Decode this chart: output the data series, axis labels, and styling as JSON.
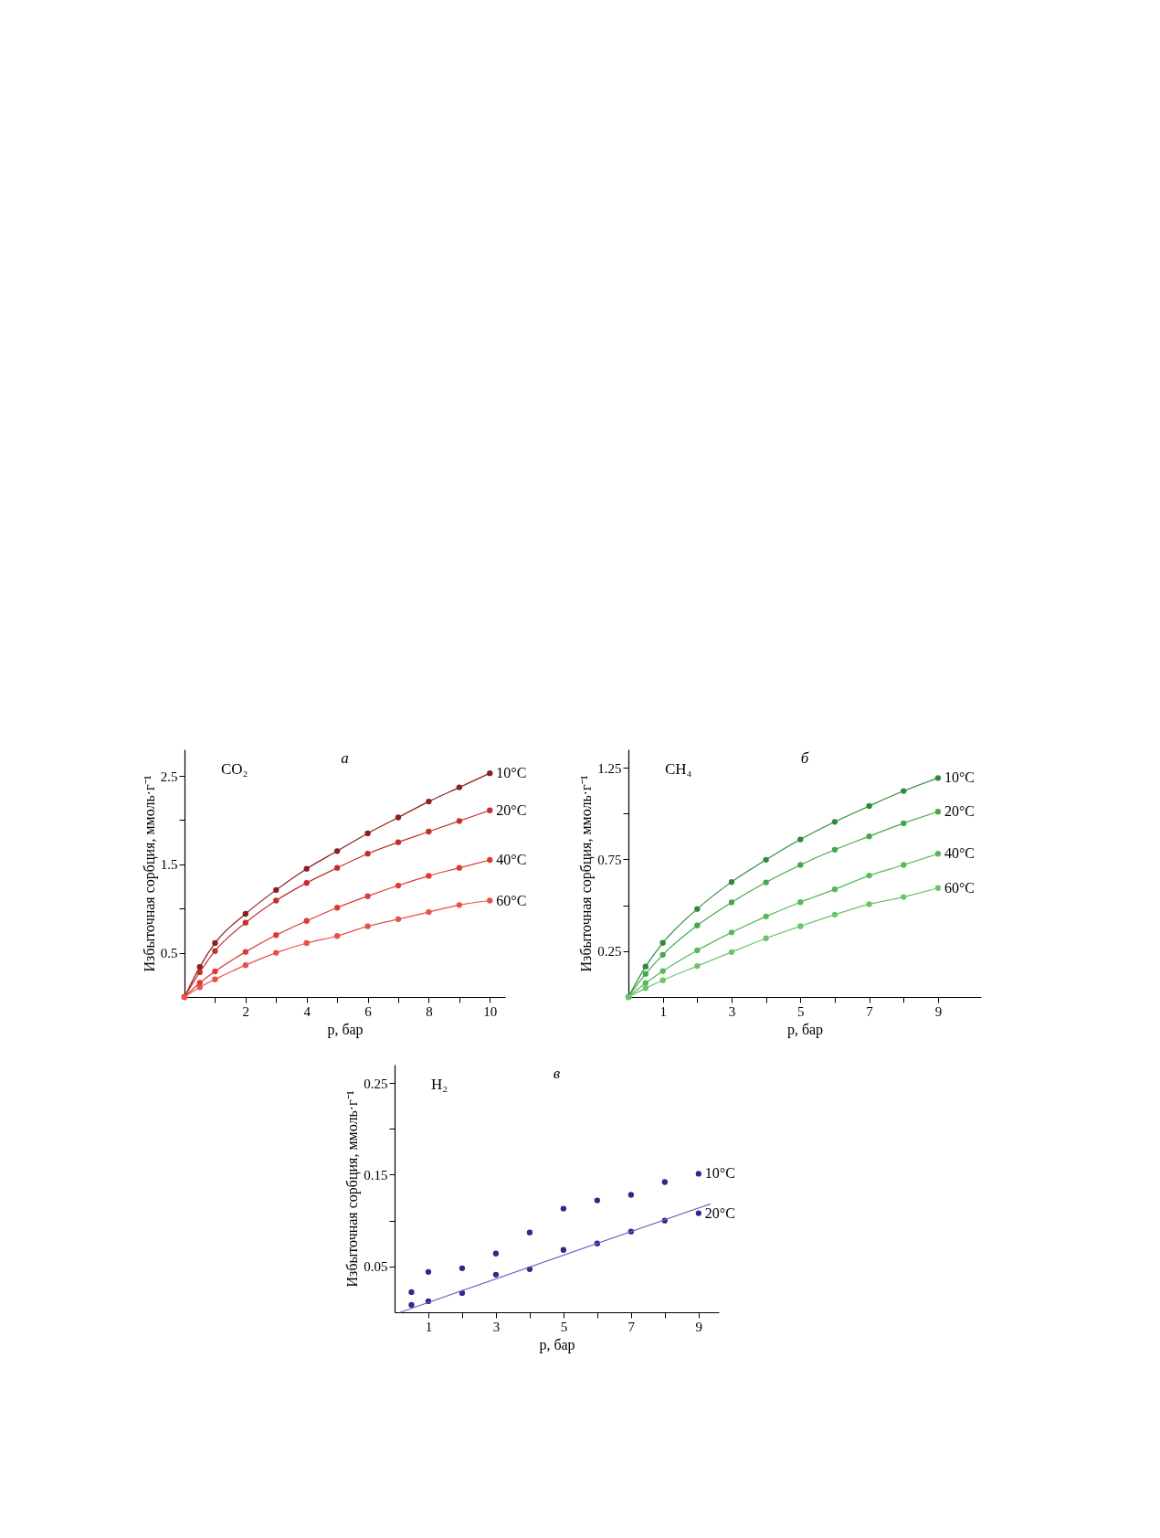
{
  "chart_data": [
    {
      "type": "line",
      "title": "а",
      "annotations": [
        "CO₂"
      ],
      "xlabel": "p, бар",
      "ylabel": "Избыточная сорбция, ммоль·г⁻¹",
      "x": [
        0,
        0.5,
        1,
        2,
        3,
        4,
        5,
        6,
        7,
        8,
        9,
        10
      ],
      "xlim": [
        0,
        10.5
      ],
      "xticks": [
        {
          "value": 1,
          "label": null
        },
        2,
        {
          "value": 3,
          "label": null
        },
        4,
        {
          "value": 5,
          "label": null
        },
        6,
        {
          "value": 7,
          "label": null
        },
        8,
        {
          "value": 9,
          "label": null
        },
        10
      ],
      "ylim": [
        0,
        2.8
      ],
      "yticks": [
        0.5,
        {
          "value": 1.0,
          "label": null
        },
        1.5,
        {
          "value": 2.0,
          "label": null
        },
        2.5
      ],
      "marker": "circle",
      "grid": false,
      "legend": false,
      "series": [
        {
          "name": "10°C",
          "color": "#8b1e1e",
          "values": [
            0,
            0.34,
            0.61,
            0.94,
            1.21,
            1.45,
            1.65,
            1.85,
            2.03,
            2.21,
            2.37,
            2.53
          ]
        },
        {
          "name": "20°C",
          "color": "#c0302c",
          "values": [
            0,
            0.28,
            0.52,
            0.84,
            1.09,
            1.29,
            1.46,
            1.62,
            1.75,
            1.87,
            1.99,
            2.11
          ]
        },
        {
          "name": "40°C",
          "color": "#dc3b34",
          "values": [
            0,
            0.16,
            0.29,
            0.51,
            0.7,
            0.86,
            1.01,
            1.14,
            1.26,
            1.37,
            1.46,
            1.55
          ]
        },
        {
          "name": "60°C",
          "color": "#e8504a",
          "values": [
            0,
            0.11,
            0.2,
            0.36,
            0.5,
            0.61,
            0.69,
            0.8,
            0.88,
            0.96,
            1.04,
            1.09
          ]
        }
      ]
    },
    {
      "type": "line",
      "title": "б",
      "annotations": [
        "CH₄"
      ],
      "xlabel": "p, бар",
      "ylabel": "Избыточная сорбция, ммоль·г⁻¹",
      "x": [
        0,
        0.5,
        1,
        2,
        3,
        4,
        5,
        6,
        7,
        8,
        9
      ],
      "xlim": [
        0,
        10.25
      ],
      "xticks": [
        1,
        {
          "value": 2,
          "label": null
        },
        3,
        {
          "value": 4,
          "label": null
        },
        5,
        {
          "value": 6,
          "label": null
        },
        7,
        {
          "value": 8,
          "label": null
        },
        9
      ],
      "ylim": [
        0,
        1.35
      ],
      "yticks": [
        0.25,
        {
          "value": 0.5,
          "label": null
        },
        0.75,
        {
          "value": 1.0,
          "label": null
        },
        1.25
      ],
      "marker": "circle",
      "grid": false,
      "legend": false,
      "series": [
        {
          "name": "10°C",
          "color": "#2e8b3a",
          "values": [
            0,
            0.166,
            0.295,
            0.48,
            0.627,
            0.748,
            0.859,
            0.955,
            1.041,
            1.123,
            1.194
          ]
        },
        {
          "name": "20°C",
          "color": "#45a84a",
          "values": [
            0,
            0.126,
            0.23,
            0.39,
            0.516,
            0.625,
            0.72,
            0.803,
            0.876,
            0.947,
            1.01
          ]
        },
        {
          "name": "40°C",
          "color": "#57b957",
          "values": [
            0,
            0.076,
            0.141,
            0.254,
            0.352,
            0.439,
            0.517,
            0.587,
            0.662,
            0.72,
            0.781
          ]
        },
        {
          "name": "60°C",
          "color": "#6cc46c",
          "values": [
            0,
            0.048,
            0.091,
            0.169,
            0.245,
            0.32,
            0.386,
            0.449,
            0.506,
            0.545,
            0.594
          ]
        }
      ]
    },
    {
      "type": "scatter",
      "title": "в",
      "annotations": [
        "H₂"
      ],
      "xlabel": "p, бар",
      "ylabel": "Избыточная сорбция, ммоль·г⁻¹",
      "x": [
        0.5,
        1,
        2,
        3,
        4,
        5,
        6,
        7,
        8,
        9
      ],
      "xlim": [
        0,
        9.6
      ],
      "xticks": [
        1,
        {
          "value": 2,
          "label": null
        },
        3,
        {
          "value": 4,
          "label": null
        },
        5,
        {
          "value": 6,
          "label": null
        },
        7,
        {
          "value": 8,
          "label": null
        },
        9
      ],
      "ylim": [
        0,
        0.27
      ],
      "yticks": [
        0.05,
        {
          "value": 0.1,
          "label": null
        },
        0.15,
        {
          "value": 0.2,
          "label": null
        },
        0.25
      ],
      "marker": "circle",
      "grid": false,
      "legend": false,
      "series": [
        {
          "name": "10°C",
          "color": "#2e2a8c",
          "values": [
            0.022,
            0.044,
            0.048,
            0.064,
            0.087,
            0.113,
            0.122,
            0.128,
            0.142,
            0.151
          ]
        },
        {
          "name": "20°C",
          "color": "#2e2a8c",
          "values": [
            0.008,
            0.012,
            0.021,
            0.041,
            0.047,
            0.068,
            0.075,
            0.088,
            0.1,
            0.108
          ]
        },
        {
          "type": "line",
          "color": "#6a64c0",
          "x": [
            0.17,
            9.34
          ],
          "values": [
            0,
            0.118
          ],
          "marker": "none"
        }
      ]
    }
  ]
}
